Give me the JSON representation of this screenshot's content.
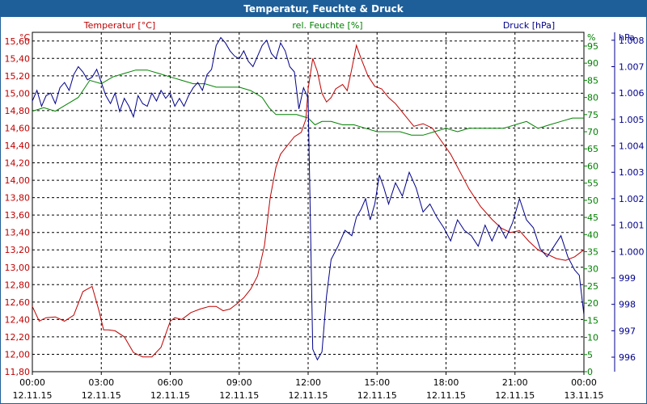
{
  "window": {
    "title": "Temperatur, Feuchte & Druck"
  },
  "colors": {
    "temperature": "#c00000",
    "humidity": "#008000",
    "pressure": "#00008b",
    "titlebar": "#1f5f99"
  },
  "chart_data": {
    "type": "line",
    "title": "Temperatur, Feuchte & Druck",
    "grid": true,
    "x_ticks": [
      {
        "time": "00:00",
        "date": "12.11.15"
      },
      {
        "time": "03:00",
        "date": "12.11.15"
      },
      {
        "time": "06:00",
        "date": "12.11.15"
      },
      {
        "time": "09:00",
        "date": "12.11.15"
      },
      {
        "time": "12:00",
        "date": "12.11.15"
      },
      {
        "time": "15:00",
        "date": "12.11.15"
      },
      {
        "time": "18:00",
        "date": "12.11.15"
      },
      {
        "time": "21:00",
        "date": "12.11.15"
      },
      {
        "time": "00:00",
        "date": "13.11.15"
      }
    ],
    "x_range_hours": [
      0,
      24
    ],
    "axes": {
      "temperature": {
        "label": "Temperatur [°C]",
        "unit": "°C",
        "range": [
          11.8,
          15.7
        ],
        "ticks": [
          "11,80",
          "12,00",
          "12,20",
          "12,40",
          "12,60",
          "12,80",
          "13,00",
          "13,20",
          "13,40",
          "13,60",
          "13,80",
          "14,00",
          "14,20",
          "14,40",
          "14,60",
          "14,80",
          "15,00",
          "15,20",
          "15,40",
          "15,60"
        ]
      },
      "humidity": {
        "label": "rel. Feuchte [%]",
        "unit": "%",
        "range": [
          0,
          99
        ],
        "ticks": [
          "0",
          "5",
          "10",
          "15",
          "20",
          "25",
          "30",
          "35",
          "40",
          "45",
          "50",
          "55",
          "60",
          "65",
          "70",
          "75",
          "80",
          "85",
          "90",
          "95"
        ]
      },
      "pressure": {
        "label": "Druck [hPa]",
        "unit": "hPa",
        "range": [
          995.45,
          1008.3
        ],
        "ticks": [
          "996",
          "997",
          "998",
          "999",
          "1.000",
          "1.001",
          "1.002",
          "1.003",
          "1.004",
          "1.005",
          "1.006",
          "1.007",
          "1.008"
        ]
      }
    },
    "series": [
      {
        "name": "Temperatur [°C]",
        "axis": "temperature",
        "x": [
          0,
          0.3,
          0.6,
          1.0,
          1.4,
          1.8,
          2.2,
          2.6,
          2.9,
          3.1,
          3.3,
          3.6,
          4.0,
          4.4,
          4.8,
          5.2,
          5.6,
          6.0,
          6.2,
          6.5,
          6.9,
          7.3,
          7.7,
          8.0,
          8.3,
          8.6,
          8.9,
          9.2,
          9.5,
          9.8,
          10.1,
          10.35,
          10.6,
          10.8,
          11.1,
          11.4,
          11.7,
          11.9,
          12.0,
          12.2,
          12.4,
          12.6,
          12.8,
          13.0,
          13.2,
          13.5,
          13.7,
          13.9,
          14.1,
          14.3,
          14.6,
          14.9,
          15.2,
          15.5,
          15.8,
          16.2,
          16.6,
          17.0,
          17.4,
          17.8,
          18.2,
          18.6,
          19.0,
          19.5,
          20.0,
          20.4,
          20.8,
          21.2,
          21.6,
          22.0,
          22.4,
          22.8,
          23.2,
          23.6,
          24.0
        ],
        "values": [
          12.55,
          12.38,
          12.42,
          12.43,
          12.38,
          12.45,
          12.72,
          12.78,
          12.5,
          12.28,
          12.28,
          12.27,
          12.2,
          12.02,
          11.97,
          11.97,
          12.08,
          12.38,
          12.42,
          12.4,
          12.48,
          12.52,
          12.55,
          12.55,
          12.5,
          12.52,
          12.58,
          12.65,
          12.75,
          12.9,
          13.25,
          13.8,
          14.15,
          14.3,
          14.4,
          14.5,
          14.55,
          14.7,
          15.05,
          15.4,
          15.25,
          15.0,
          14.9,
          14.95,
          15.05,
          15.1,
          15.03,
          15.28,
          15.55,
          15.4,
          15.2,
          15.08,
          15.05,
          14.95,
          14.88,
          14.75,
          14.62,
          14.65,
          14.6,
          14.45,
          14.3,
          14.1,
          13.9,
          13.7,
          13.55,
          13.45,
          13.4,
          13.42,
          13.3,
          13.2,
          13.15,
          13.1,
          13.08,
          13.12,
          13.2
        ]
      },
      {
        "name": "rel. Feuchte [%]",
        "axis": "humidity",
        "x": [
          0,
          0.5,
          1.0,
          1.5,
          2.0,
          2.5,
          3.0,
          3.5,
          4.0,
          4.5,
          5.0,
          5.5,
          6.0,
          6.5,
          7.0,
          7.5,
          8.0,
          8.5,
          9.0,
          9.5,
          10.0,
          10.3,
          10.6,
          11.0,
          11.5,
          12.0,
          12.3,
          12.6,
          13.0,
          13.5,
          14.0,
          14.5,
          15.0,
          15.5,
          16.0,
          16.5,
          17.0,
          17.5,
          18.0,
          18.5,
          19.0,
          19.5,
          20.0,
          20.5,
          21.0,
          21.5,
          22.0,
          22.5,
          23.0,
          23.5,
          24.0
        ],
        "values": [
          76,
          77,
          76,
          78,
          80,
          85,
          84,
          86,
          87,
          88,
          88,
          87,
          86,
          85,
          84,
          84,
          83,
          83,
          83,
          82,
          80,
          77,
          75,
          75,
          75,
          74,
          72,
          73,
          73,
          72,
          72,
          71,
          70,
          70,
          70,
          69,
          69,
          70,
          71,
          70,
          71,
          71,
          71,
          71,
          72,
          73,
          71,
          72,
          73,
          74,
          74
        ]
      },
      {
        "name": "Druck [hPa]",
        "axis": "pressure",
        "x": [
          0,
          0.2,
          0.4,
          0.6,
          0.8,
          1.0,
          1.2,
          1.4,
          1.6,
          1.8,
          2.0,
          2.2,
          2.4,
          2.6,
          2.8,
          3.0,
          3.2,
          3.4,
          3.6,
          3.8,
          4.0,
          4.2,
          4.4,
          4.6,
          4.8,
          5.0,
          5.2,
          5.4,
          5.6,
          5.8,
          6.0,
          6.2,
          6.4,
          6.6,
          6.8,
          7.0,
          7.2,
          7.4,
          7.6,
          7.8,
          8.0,
          8.2,
          8.4,
          8.6,
          8.8,
          9.0,
          9.2,
          9.4,
          9.6,
          9.8,
          10.0,
          10.2,
          10.4,
          10.6,
          10.8,
          11.0,
          11.2,
          11.4,
          11.6,
          11.8,
          12.0,
          12.2,
          12.4,
          12.6,
          12.8,
          13.0,
          13.3,
          13.6,
          13.9,
          14.1,
          14.3,
          14.5,
          14.7,
          14.9,
          15.1,
          15.3,
          15.5,
          15.8,
          16.1,
          16.4,
          16.7,
          17.0,
          17.3,
          17.6,
          17.9,
          18.2,
          18.5,
          18.8,
          19.1,
          19.4,
          19.7,
          20.0,
          20.3,
          20.6,
          20.9,
          21.2,
          21.5,
          21.8,
          22.1,
          22.4,
          22.7,
          23.0,
          23.3,
          23.6,
          23.8,
          24.0
        ],
        "values": [
          1005.7,
          1006.1,
          1005.5,
          1005.9,
          1006.0,
          1005.6,
          1006.2,
          1006.4,
          1006.1,
          1006.7,
          1007.0,
          1006.8,
          1006.5,
          1006.6,
          1006.9,
          1006.4,
          1005.9,
          1005.6,
          1006.0,
          1005.3,
          1005.8,
          1005.5,
          1005.1,
          1005.9,
          1005.6,
          1005.5,
          1006.0,
          1005.7,
          1006.1,
          1005.8,
          1006.0,
          1005.5,
          1005.8,
          1005.5,
          1005.9,
          1006.2,
          1006.4,
          1006.1,
          1006.7,
          1006.9,
          1007.8,
          1008.1,
          1007.9,
          1007.6,
          1007.4,
          1007.3,
          1007.6,
          1007.2,
          1007.0,
          1007.4,
          1007.8,
          1008.0,
          1007.5,
          1007.3,
          1007.9,
          1007.6,
          1007.0,
          1006.8,
          1005.4,
          1006.2,
          1005.8,
          996.3,
          995.9,
          996.2,
          998.3,
          999.7,
          1000.2,
          1000.8,
          1000.6,
          1001.3,
          1001.6,
          1002.0,
          1001.2,
          1001.8,
          1002.9,
          1002.4,
          1001.8,
          1002.6,
          1002.1,
          1003.0,
          1002.4,
          1001.5,
          1001.8,
          1001.3,
          1000.9,
          1000.4,
          1001.2,
          1000.8,
          1000.6,
          1000.2,
          1001.0,
          1000.4,
          1001.0,
          1000.5,
          1001.1,
          1002.0,
          1001.2,
          1000.9,
          1000.1,
          999.8,
          1000.2,
          1000.6,
          999.8,
          999.3,
          999.1,
          997.6
        ]
      }
    ]
  }
}
